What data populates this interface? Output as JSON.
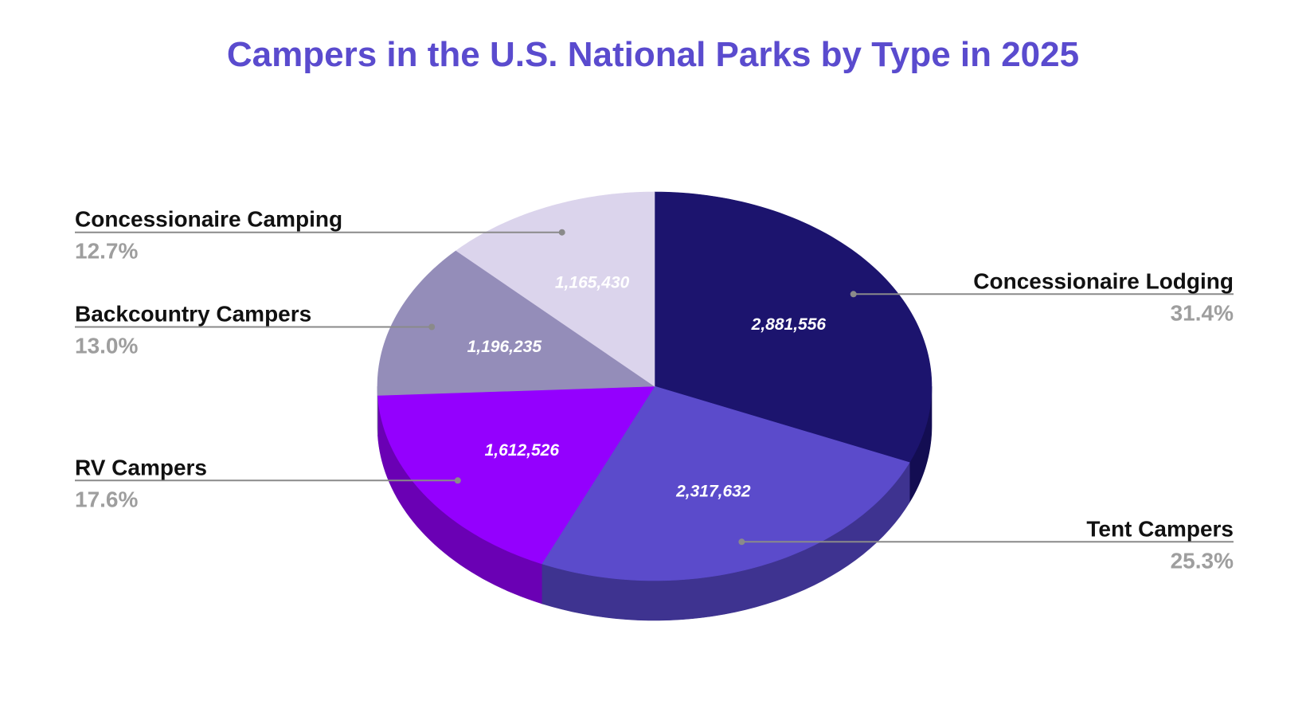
{
  "chart_data": {
    "type": "pie",
    "title": "Campers in the U.S. National Parks by Type in 2025",
    "style": "3d",
    "data_labels": "inside",
    "legend": "none",
    "slices": [
      {
        "name": "Concessionaire Lodging",
        "value": 2881556,
        "value_label": "2,881,556",
        "percent": "31.4%",
        "color": "#1c146e",
        "side_color": "#130d52",
        "text_color": "#ffffff"
      },
      {
        "name": "Tent Campers",
        "value": 2317632,
        "value_label": "2,317,632",
        "percent": "25.3%",
        "color": "#5b4bcb",
        "side_color": "#3e3390",
        "text_color": "#ffffff"
      },
      {
        "name": "RV Campers",
        "value": 1612526,
        "value_label": "1,612,526",
        "percent": "17.6%",
        "color": "#9400fe",
        "side_color": "#6a00b4",
        "text_color": "#ffffff"
      },
      {
        "name": "Backcountry Campers",
        "value": 1196235,
        "value_label": "1,196,235",
        "percent": "13.0%",
        "color": "#948db9",
        "side_color": "#6d6890",
        "text_color": "#ffffff"
      },
      {
        "name": "Concessionaire Camping",
        "value": 1165430,
        "value_label": "1,165,430",
        "percent": "12.7%",
        "color": "#dbd4ec",
        "side_color": "#aaa3c0",
        "text_color": "#ffffff"
      }
    ],
    "start_at": "top",
    "direction": "clockwise",
    "colors": {
      "title": "#5a4bce",
      "category_label": "#111111",
      "percent_label": "#9e9e9e",
      "leader_line": "#8a8a8a"
    }
  }
}
